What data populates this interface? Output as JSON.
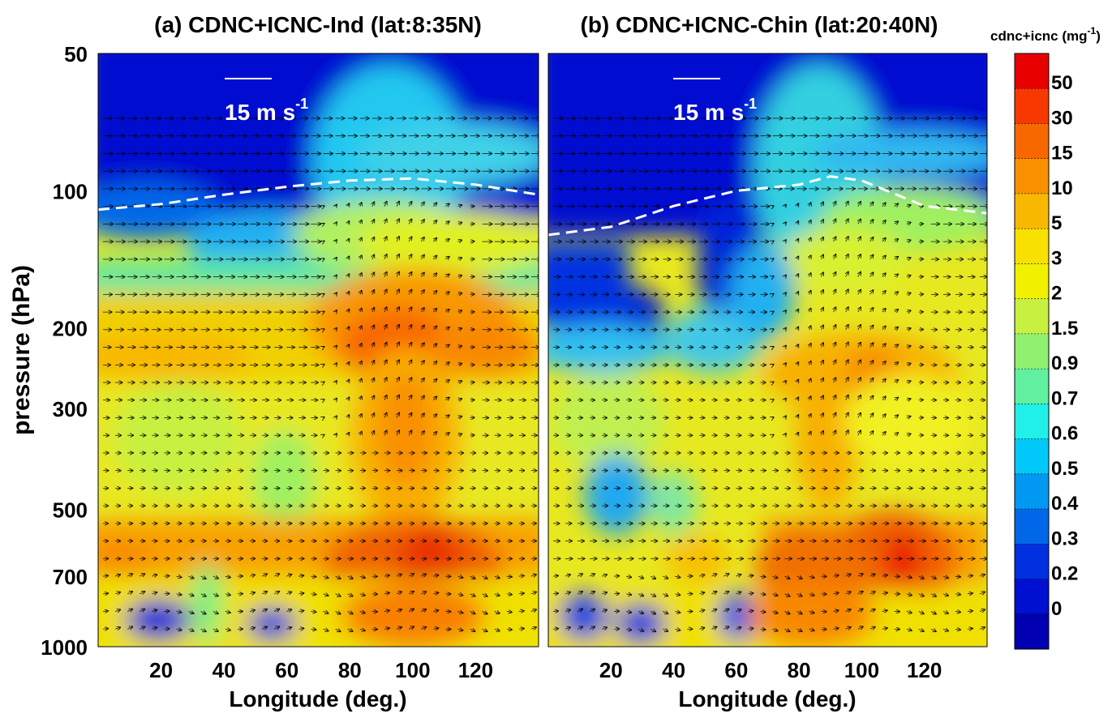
{
  "panels": [
    {
      "title": "(a) CDNC+ICNC-Ind (lat:8:35N)",
      "vector_ref_label": "15 m s",
      "vector_ref_sup": "-1"
    },
    {
      "title": "(b) CDNC+ICNC-Chin (lat:20:40N)",
      "vector_ref_label": "15 m s",
      "vector_ref_sup": "-1"
    }
  ],
  "colorbar": {
    "unit_label": "cdnc+icnc (mg",
    "unit_sup": "-1",
    "unit_close": ")",
    "levels": [
      "50",
      "30",
      "15",
      "10",
      "5",
      "3",
      "2",
      "1.5",
      "0.9",
      "0.7",
      "0.6",
      "0.5",
      "0.4",
      "0.3",
      "0.2",
      "0"
    ],
    "colors": [
      "#e80000",
      "#f83800",
      "#f86800",
      "#f89000",
      "#f8b800",
      "#f8e000",
      "#f0f000",
      "#c8f040",
      "#90f070",
      "#60f0a0",
      "#20f0e8",
      "#00c8f8",
      "#0098f0",
      "#0068e8",
      "#0030e0",
      "#0010d0",
      "#0000b0"
    ]
  },
  "chart_data": [
    {
      "type": "heatmap",
      "title": "(a) CDNC+ICNC-Ind (lat:8:35N)",
      "xlabel": "Longitude (deg.)",
      "ylabel": "pressure (hPa)",
      "x_ticks": [
        20,
        40,
        60,
        80,
        100,
        120
      ],
      "y_ticks": [
        50,
        100,
        200,
        300,
        500,
        700,
        1000
      ],
      "xlim": [
        0,
        140
      ],
      "ylim": [
        1000,
        50
      ],
      "y_scale": "log",
      "tropopause_line": {
        "x": [
          0,
          20,
          40,
          60,
          80,
          100,
          120,
          140
        ],
        "y": [
          110,
          107,
          102,
          98,
          95,
          94,
          97,
          102
        ]
      }
    },
    {
      "type": "heatmap",
      "title": "(b) CDNC+ICNC-Chin (lat:20:40N)",
      "xlabel": "Longitude (deg.)",
      "ylabel": "pressure (hPa)",
      "x_ticks": [
        20,
        40,
        60,
        80,
        100,
        120
      ],
      "y_ticks": [
        50,
        100,
        200,
        300,
        500,
        700,
        1000
      ],
      "xlim": [
        0,
        140
      ],
      "ylim": [
        1000,
        50
      ],
      "y_scale": "log",
      "tropopause_line": {
        "x": [
          0,
          20,
          40,
          60,
          80,
          90,
          100,
          120,
          140
        ],
        "y": [
          125,
          120,
          108,
          100,
          97,
          93,
          95,
          108,
          112
        ]
      }
    }
  ]
}
